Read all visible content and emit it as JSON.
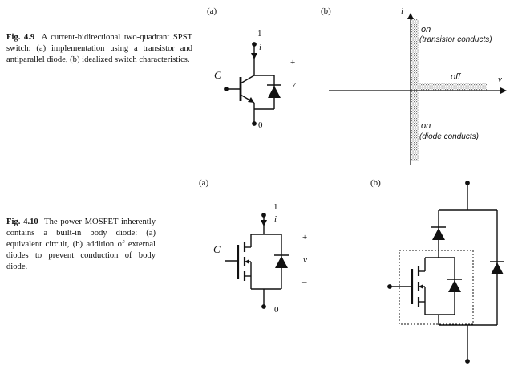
{
  "fig49": {
    "number": "Fig. 4.9",
    "caption": "A current-bidirectional two-quadrant SPST switch: (a) implementation using a transistor and antiparallel diode, (b) idealized switch characteristics.",
    "panel_a": "(a)",
    "panel_b": "(b)",
    "circuit": {
      "node_top": "1",
      "current": "i",
      "control": "C",
      "plus": "+",
      "voltage": "v",
      "minus": "–",
      "node_bottom": "0"
    },
    "characteristic": {
      "y_axis": "i",
      "x_axis": "v",
      "on_upper": "on",
      "on_upper_note": "(transistor conducts)",
      "off": "off",
      "on_lower": "on",
      "on_lower_note": "(diode conducts)"
    }
  },
  "fig410": {
    "number": "Fig. 4.10",
    "caption": "The power MOSFET inherently contains a built-in body diode: (a) equivalent circuit, (b) addition of external diodes to prevent conduction of body diode.",
    "panel_a": "(a)",
    "panel_b": "(b)",
    "circuit": {
      "node_top": "1",
      "current": "i",
      "control": "C",
      "plus": "+",
      "voltage": "v",
      "minus": "–",
      "node_bottom": "0"
    }
  }
}
